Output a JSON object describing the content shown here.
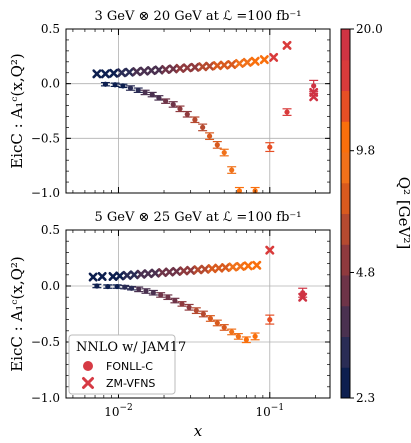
{
  "chart_data": {
    "type": "scatter",
    "x_scale": "log",
    "xlim": [
      0.0045,
      0.25
    ],
    "xlabel": "x",
    "colorbar": {
      "label": "Q² [GeV²]",
      "ticks": [
        "2.3",
        "4.8",
        "9.8",
        "20.0"
      ],
      "colors": [
        "#0d1f4f",
        "#2a2c55",
        "#4a3150",
        "#6e3448",
        "#8f3a3e",
        "#b54a30",
        "#d85a1e",
        "#f0711a",
        "#f96f0c",
        "#e64f25",
        "#d93b3b",
        "#cf3343"
      ]
    },
    "legend": {
      "title": "NNLO w/ JAM17",
      "entries": [
        "FONLL-C",
        "ZM-VFNS"
      ],
      "placement": "lower-left"
    },
    "panels": [
      {
        "title": "3 GeV ⊗ 20 GeV at ℒ =100 fb⁻¹",
        "ylabel": "EicC : A₁ᶜ(x,Q²)",
        "ylim": [
          -1.0,
          0.5
        ],
        "yticks": [
          "0.5",
          "0.0",
          "−0.5",
          "−1.0"
        ],
        "xticks": [],
        "series": [
          {
            "marker": "x",
            "points": [
              {
                "x": 0.0072,
                "y": 0.09,
                "q": 2.3
              },
              {
                "x": 0.0082,
                "y": 0.09,
                "q": 2.5
              },
              {
                "x": 0.0093,
                "y": 0.095,
                "q": 2.7
              },
              {
                "x": 0.0105,
                "y": 0.1,
                "q": 2.9
              },
              {
                "x": 0.0118,
                "y": 0.105,
                "q": 3.1
              },
              {
                "x": 0.0132,
                "y": 0.11,
                "q": 3.3
              },
              {
                "x": 0.0148,
                "y": 0.115,
                "q": 3.5
              },
              {
                "x": 0.0165,
                "y": 0.12,
                "q": 3.7
              },
              {
                "x": 0.0185,
                "y": 0.125,
                "q": 3.9
              },
              {
                "x": 0.0205,
                "y": 0.13,
                "q": 4.2
              },
              {
                "x": 0.023,
                "y": 0.135,
                "q": 4.5
              },
              {
                "x": 0.0255,
                "y": 0.14,
                "q": 4.8
              },
              {
                "x": 0.0285,
                "y": 0.145,
                "q": 5.2
              },
              {
                "x": 0.032,
                "y": 0.15,
                "q": 5.6
              },
              {
                "x": 0.036,
                "y": 0.155,
                "q": 6.0
              },
              {
                "x": 0.04,
                "y": 0.16,
                "q": 6.5
              },
              {
                "x": 0.045,
                "y": 0.165,
                "q": 7.0
              },
              {
                "x": 0.05,
                "y": 0.17,
                "q": 7.5
              },
              {
                "x": 0.056,
                "y": 0.175,
                "q": 8.0
              },
              {
                "x": 0.063,
                "y": 0.185,
                "q": 8.6
              },
              {
                "x": 0.071,
                "y": 0.195,
                "q": 9.2
              },
              {
                "x": 0.08,
                "y": 0.205,
                "q": 9.8
              },
              {
                "x": 0.092,
                "y": 0.22,
                "q": 11.5
              },
              {
                "x": 0.106,
                "y": 0.24,
                "q": 14.0
              },
              {
                "x": 0.13,
                "y": 0.35,
                "q": 16.5
              },
              {
                "x": 0.195,
                "y": -0.08,
                "q": 19.0
              },
              {
                "x": 0.195,
                "y": -0.12,
                "q": 19.5
              }
            ]
          },
          {
            "marker": "o",
            "points": [
              {
                "x": 0.0082,
                "y": -0.005,
                "e": 0.015,
                "q": 2.3
              },
              {
                "x": 0.0095,
                "y": -0.01,
                "e": 0.015,
                "q": 2.5
              },
              {
                "x": 0.0107,
                "y": -0.02,
                "e": 0.015,
                "q": 2.7
              },
              {
                "x": 0.012,
                "y": -0.04,
                "e": 0.02,
                "q": 2.9
              },
              {
                "x": 0.0135,
                "y": -0.06,
                "e": 0.02,
                "q": 3.1
              },
              {
                "x": 0.015,
                "y": -0.08,
                "e": 0.02,
                "q": 3.3
              },
              {
                "x": 0.0167,
                "y": -0.1,
                "e": 0.02,
                "q": 3.5
              },
              {
                "x": 0.0185,
                "y": -0.13,
                "e": 0.02,
                "q": 3.8
              },
              {
                "x": 0.0205,
                "y": -0.16,
                "e": 0.02,
                "q": 4.1
              },
              {
                "x": 0.023,
                "y": -0.19,
                "e": 0.025,
                "q": 4.4
              },
              {
                "x": 0.0255,
                "y": -0.23,
                "e": 0.025,
                "q": 4.8
              },
              {
                "x": 0.0285,
                "y": -0.28,
                "e": 0.025,
                "q": 5.3
              },
              {
                "x": 0.032,
                "y": -0.33,
                "e": 0.025,
                "q": 5.8
              },
              {
                "x": 0.036,
                "y": -0.4,
                "e": 0.03,
                "q": 6.4
              },
              {
                "x": 0.04,
                "y": -0.48,
                "e": 0.03,
                "q": 7.0
              },
              {
                "x": 0.045,
                "y": -0.56,
                "e": 0.03,
                "q": 7.7
              },
              {
                "x": 0.05,
                "y": -0.63,
                "e": 0.03,
                "q": 8.4
              },
              {
                "x": 0.056,
                "y": -0.79,
                "e": 0.03,
                "q": 9.2
              },
              {
                "x": 0.063,
                "y": -0.98,
                "e": 0.03,
                "q": 9.8
              },
              {
                "x": 0.08,
                "y": -0.98,
                "e": 0.03,
                "q": 11.0
              },
              {
                "x": 0.1,
                "y": -0.58,
                "e": 0.04,
                "q": 12.5
              },
              {
                "x": 0.13,
                "y": -0.26,
                "e": 0.03,
                "q": 15.0
              },
              {
                "x": 0.195,
                "y": -0.02,
                "e": 0.05,
                "q": 19.0
              }
            ]
          }
        ]
      },
      {
        "title": "5 GeV ⊗ 25 GeV at ℒ =100 fb⁻¹",
        "ylabel": "EicC : A₁ᶜ(x,Q²)",
        "ylim": [
          -1.0,
          0.5
        ],
        "yticks": [
          "0.5",
          "0.0",
          "−0.5",
          "−1.0"
        ],
        "xticks": [
          {
            "v": 0.01,
            "base": "10",
            "exp": "−2"
          },
          {
            "v": 0.1,
            "base": "10",
            "exp": "−1"
          }
        ],
        "series": [
          {
            "marker": "x",
            "points": [
              {
                "x": 0.0068,
                "y": 0.08,
                "q": 2.3
              },
              {
                "x": 0.0078,
                "y": 0.085,
                "q": 2.4
              },
              {
                "x": 0.0092,
                "y": 0.085,
                "q": 2.5
              },
              {
                "x": 0.0102,
                "y": 0.09,
                "q": 2.7
              },
              {
                "x": 0.0114,
                "y": 0.095,
                "q": 2.9
              },
              {
                "x": 0.0127,
                "y": 0.1,
                "q": 3.1
              },
              {
                "x": 0.0141,
                "y": 0.105,
                "q": 3.3
              },
              {
                "x": 0.0157,
                "y": 0.11,
                "q": 3.5
              },
              {
                "x": 0.0175,
                "y": 0.115,
                "q": 3.7
              },
              {
                "x": 0.0195,
                "y": 0.12,
                "q": 4.0
              },
              {
                "x": 0.0217,
                "y": 0.125,
                "q": 4.3
              },
              {
                "x": 0.0242,
                "y": 0.13,
                "q": 4.6
              },
              {
                "x": 0.027,
                "y": 0.135,
                "q": 5.0
              },
              {
                "x": 0.03,
                "y": 0.14,
                "q": 5.4
              },
              {
                "x": 0.0335,
                "y": 0.145,
                "q": 5.8
              },
              {
                "x": 0.0373,
                "y": 0.15,
                "q": 6.3
              },
              {
                "x": 0.0415,
                "y": 0.155,
                "q": 6.8
              },
              {
                "x": 0.046,
                "y": 0.16,
                "q": 7.3
              },
              {
                "x": 0.051,
                "y": 0.165,
                "q": 7.9
              },
              {
                "x": 0.057,
                "y": 0.17,
                "q": 8.5
              },
              {
                "x": 0.064,
                "y": 0.175,
                "q": 9.1
              },
              {
                "x": 0.072,
                "y": 0.18,
                "q": 9.8
              },
              {
                "x": 0.082,
                "y": 0.185,
                "q": 11.5
              },
              {
                "x": 0.1,
                "y": 0.32,
                "q": 14.0
              },
              {
                "x": 0.165,
                "y": -0.1,
                "q": 19.0
              }
            ]
          },
          {
            "marker": "o",
            "points": [
              {
                "x": 0.0072,
                "y": 0.0,
                "e": 0.015,
                "q": 2.3
              },
              {
                "x": 0.0085,
                "y": -0.005,
                "e": 0.015,
                "q": 2.5
              },
              {
                "x": 0.0098,
                "y": -0.005,
                "e": 0.015,
                "q": 2.7
              },
              {
                "x": 0.011,
                "y": -0.01,
                "e": 0.015,
                "q": 2.9
              },
              {
                "x": 0.0122,
                "y": -0.02,
                "e": 0.015,
                "q": 3.1
              },
              {
                "x": 0.0136,
                "y": -0.03,
                "e": 0.02,
                "q": 3.3
              },
              {
                "x": 0.0152,
                "y": -0.045,
                "e": 0.02,
                "q": 3.5
              },
              {
                "x": 0.017,
                "y": -0.06,
                "e": 0.02,
                "q": 3.7
              },
              {
                "x": 0.019,
                "y": -0.08,
                "e": 0.02,
                "q": 4.0
              },
              {
                "x": 0.0212,
                "y": -0.1,
                "e": 0.02,
                "q": 4.3
              },
              {
                "x": 0.0236,
                "y": -0.13,
                "e": 0.02,
                "q": 4.6
              },
              {
                "x": 0.0263,
                "y": -0.16,
                "e": 0.02,
                "q": 5.0
              },
              {
                "x": 0.0293,
                "y": -0.19,
                "e": 0.025,
                "q": 5.4
              },
              {
                "x": 0.0327,
                "y": -0.22,
                "e": 0.025,
                "q": 5.8
              },
              {
                "x": 0.0364,
                "y": -0.25,
                "e": 0.025,
                "q": 6.3
              },
              {
                "x": 0.0405,
                "y": -0.29,
                "e": 0.025,
                "q": 6.8
              },
              {
                "x": 0.045,
                "y": -0.33,
                "e": 0.025,
                "q": 7.3
              },
              {
                "x": 0.05,
                "y": -0.37,
                "e": 0.025,
                "q": 7.9
              },
              {
                "x": 0.056,
                "y": -0.41,
                "e": 0.025,
                "q": 8.5
              },
              {
                "x": 0.062,
                "y": -0.45,
                "e": 0.025,
                "q": 9.2
              },
              {
                "x": 0.07,
                "y": -0.48,
                "e": 0.025,
                "q": 9.8
              },
              {
                "x": 0.08,
                "y": -0.45,
                "e": 0.03,
                "q": 11.0
              },
              {
                "x": 0.1,
                "y": -0.3,
                "e": 0.04,
                "q": 13.0
              },
              {
                "x": 0.165,
                "y": -0.06,
                "e": 0.04,
                "q": 19.0
              }
            ]
          }
        ]
      }
    ]
  }
}
